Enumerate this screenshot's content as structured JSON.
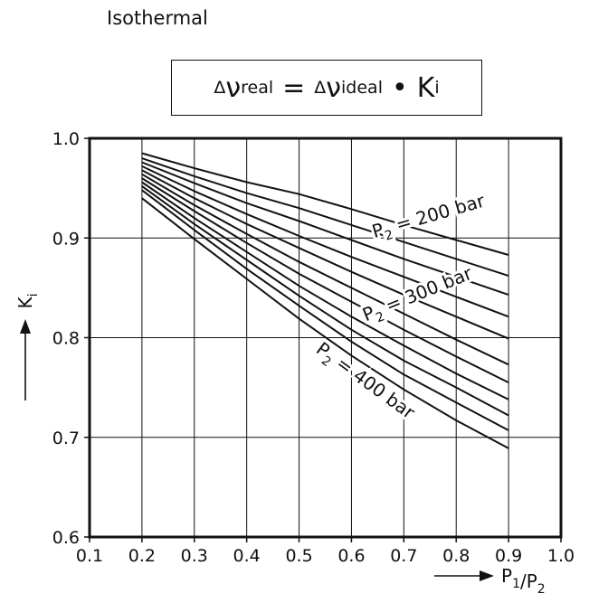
{
  "title": "Isothermal",
  "formula": {
    "delta": "Δ",
    "lhs_symbol": "ν",
    "lhs_sub": "real",
    "equals": "=",
    "rhs_symbol": "ν",
    "rhs_sub": "ideal",
    "dot": "•",
    "factor_symbol": "K",
    "factor_sub": "i"
  },
  "chart_data": {
    "type": "line",
    "title": "Isothermal",
    "xlabel": "P1/P2",
    "ylabel": "Ki",
    "xlim": [
      0.1,
      1.0
    ],
    "ylim": [
      0.6,
      1.0
    ],
    "x_ticks": [
      "0.1",
      "0.2",
      "0.3",
      "0.4",
      "0.5",
      "0.6",
      "0.7",
      "0.8",
      "0.9",
      "1.0"
    ],
    "y_ticks": [
      "0.6",
      "0.7",
      "0.8",
      "0.9",
      "1.0"
    ],
    "grid": true,
    "x": [
      0.2,
      0.3,
      0.4,
      0.5,
      0.6,
      0.7,
      0.8,
      0.9
    ],
    "series": [
      {
        "name": "P2 = 200 bar",
        "values": [
          0.985,
          0.97,
          0.956,
          0.944,
          0.929,
          0.913,
          0.898,
          0.883
        ]
      },
      {
        "values": [
          0.98,
          0.962,
          0.945,
          0.93,
          0.913,
          0.896,
          0.879,
          0.862
        ]
      },
      {
        "values": [
          0.976,
          0.955,
          0.935,
          0.917,
          0.898,
          0.879,
          0.861,
          0.843
        ]
      },
      {
        "values": [
          0.972,
          0.947,
          0.924,
          0.902,
          0.881,
          0.861,
          0.841,
          0.821
        ]
      },
      {
        "name": "P2 = 300 bar",
        "values": [
          0.968,
          0.94,
          0.914,
          0.89,
          0.866,
          0.843,
          0.821,
          0.799
        ]
      },
      {
        "values": [
          0.964,
          0.933,
          0.904,
          0.876,
          0.85,
          0.824,
          0.798,
          0.773
        ]
      },
      {
        "values": [
          0.96,
          0.927,
          0.895,
          0.864,
          0.836,
          0.808,
          0.781,
          0.755
        ]
      },
      {
        "values": [
          0.956,
          0.92,
          0.886,
          0.852,
          0.821,
          0.792,
          0.764,
          0.738
        ]
      },
      {
        "values": [
          0.952,
          0.914,
          0.878,
          0.842,
          0.808,
          0.777,
          0.75,
          0.722
        ]
      },
      {
        "values": [
          0.948,
          0.908,
          0.869,
          0.832,
          0.796,
          0.763,
          0.735,
          0.707
        ]
      },
      {
        "name": "P2 = 400 bar",
        "values": [
          0.94,
          0.899,
          0.859,
          0.819,
          0.782,
          0.748,
          0.717,
          0.689
        ]
      }
    ],
    "annotations": [
      {
        "text": "P2 = 200 bar",
        "x": 0.75,
        "y": 0.916,
        "angle": -16
      },
      {
        "text": "P2 = 300 bar",
        "x": 0.73,
        "y": 0.838,
        "angle": -22
      },
      {
        "text": "P2 = 400 bar",
        "x": 0.62,
        "y": 0.752,
        "angle": 36
      }
    ]
  }
}
